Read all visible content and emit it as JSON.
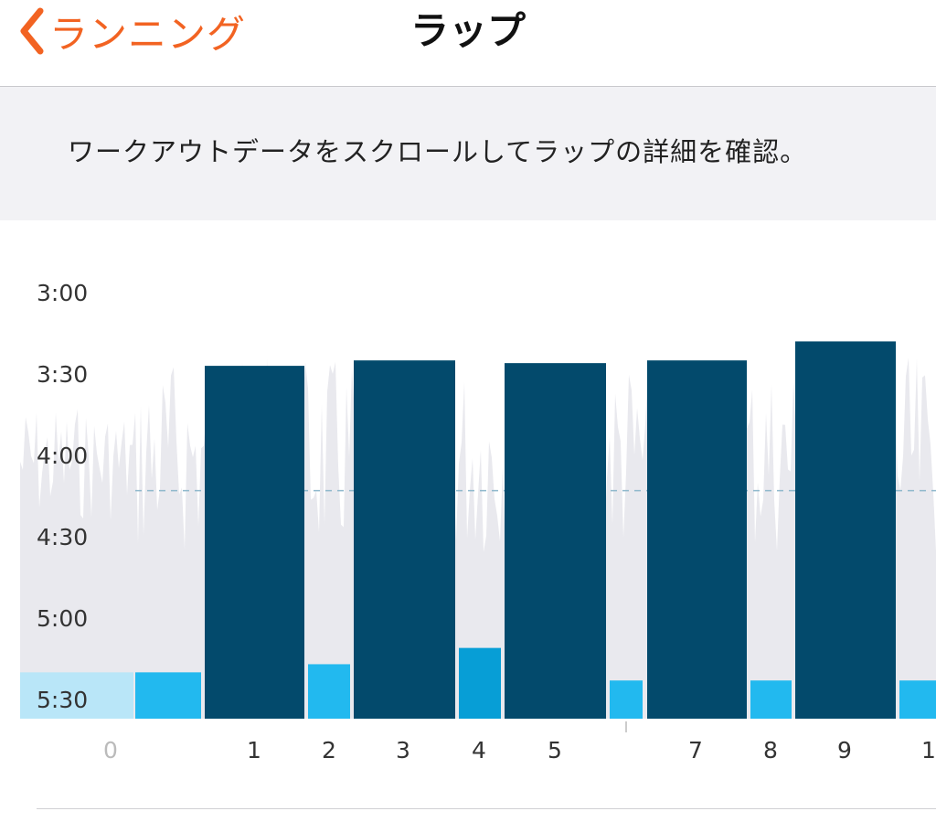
{
  "nav": {
    "back_label": "ランニング",
    "title": "ラップ"
  },
  "info": {
    "text": "ワークアウトデータをスクロールしてラップの詳細を確認。"
  },
  "colors": {
    "accent": "#f26322",
    "work_lap": "#034a6c",
    "rest_lap": "#22b9ef",
    "rest_lap_selected": "#079ed6",
    "pre_lap": "#b9e6f8",
    "pace_trace": "#e9e9ee",
    "avg_line": "#8fb8cc",
    "tick_gray": "#bbbbbb"
  },
  "chart_data": {
    "type": "bar",
    "y_axis": {
      "labels": [
        "3:00",
        "3:30",
        "4:00",
        "4:30",
        "5:00",
        "5:30"
      ],
      "unit": "pace (min:sec per km)",
      "top_seconds": 180,
      "bottom_seconds": 340
    },
    "x_axis": {
      "labels": [
        "0",
        "1",
        "2",
        "3",
        "4",
        "5",
        "7",
        "8",
        "9",
        "1"
      ]
    },
    "average_pace_seconds": 253,
    "laps": [
      {
        "kind": "pre",
        "pace_seconds": 320
      },
      {
        "kind": "rest",
        "pace_seconds": 320
      },
      {
        "kind": "work",
        "pace_seconds": 207
      },
      {
        "kind": "rest",
        "pace_seconds": 317
      },
      {
        "kind": "work",
        "pace_seconds": 205
      },
      {
        "kind": "rest",
        "pace_seconds": 311,
        "selected": true
      },
      {
        "kind": "work",
        "pace_seconds": 206
      },
      {
        "kind": "rest",
        "pace_seconds": 323
      },
      {
        "kind": "work",
        "pace_seconds": 205
      },
      {
        "kind": "rest",
        "pace_seconds": 323
      },
      {
        "kind": "work",
        "pace_seconds": 198
      },
      {
        "kind": "rest",
        "pace_seconds": 323
      }
    ]
  }
}
